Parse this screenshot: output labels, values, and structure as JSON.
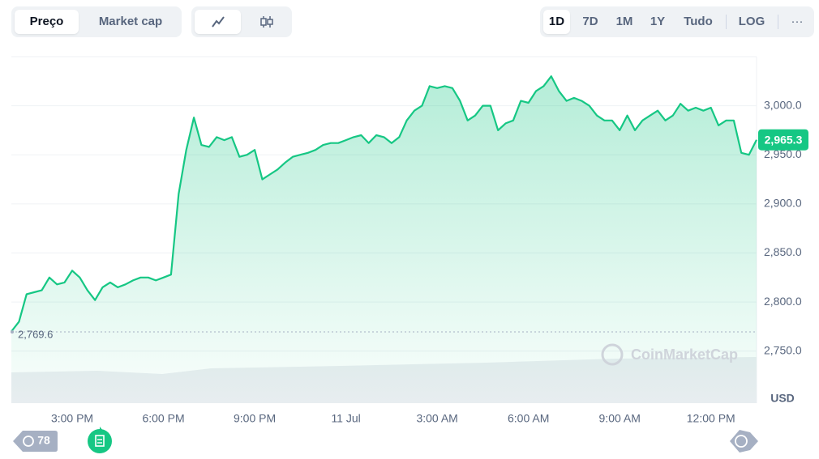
{
  "ui": {
    "view_tabs": [
      "Preço",
      "Market cap"
    ],
    "range_buttons": [
      "1D",
      "7D",
      "1M",
      "1Y",
      "Tudo"
    ],
    "scale_button": "LOG",
    "more_button": "···",
    "history_count": "78",
    "watermark": "CoinMarketCap"
  },
  "chart_data": {
    "type": "area",
    "color": "#16c784",
    "y_unit": "USD",
    "grid": true,
    "categories": [
      null,
      null,
      null,
      null,
      null,
      null,
      null,
      null,
      "3:00 PM",
      null,
      null,
      null,
      null,
      null,
      null,
      null,
      null,
      null,
      null,
      null,
      "6:00 PM",
      null,
      null,
      null,
      null,
      null,
      null,
      null,
      null,
      null,
      null,
      null,
      "9:00 PM",
      null,
      null,
      null,
      null,
      null,
      null,
      null,
      null,
      null,
      null,
      null,
      "11 Jul",
      null,
      null,
      null,
      null,
      null,
      null,
      null,
      null,
      null,
      null,
      null,
      "3:00 AM",
      null,
      null,
      null,
      null,
      null,
      null,
      null,
      null,
      null,
      null,
      null,
      "6:00 AM",
      null,
      null,
      null,
      null,
      null,
      null,
      null,
      null,
      null,
      null,
      null,
      "9:00 AM",
      null,
      null,
      null,
      null,
      null,
      null,
      null,
      null,
      null,
      null,
      null,
      "12:00 PM",
      null,
      null,
      null,
      null,
      null,
      null
    ],
    "values": [
      2770,
      2780,
      2808,
      2810,
      2812,
      2825,
      2818,
      2820,
      2832,
      2825,
      2812,
      2802,
      2815,
      2820,
      2815,
      2818,
      2822,
      2825,
      2825,
      2822,
      2825,
      2828,
      2910,
      2955,
      2988,
      2960,
      2958,
      2968,
      2965,
      2968,
      2948,
      2950,
      2955,
      2925,
      2930,
      2935,
      2942,
      2948,
      2950,
      2952,
      2955,
      2960,
      2962,
      2962,
      2965,
      2968,
      2970,
      2962,
      2970,
      2968,
      2962,
      2968,
      2985,
      2995,
      3000,
      3020,
      3018,
      3020,
      3018,
      3005,
      2985,
      2990,
      3000,
      3000,
      2975,
      2982,
      2985,
      3005,
      3003,
      3015,
      3020,
      3030,
      3015,
      3005,
      3008,
      3005,
      3000,
      2990,
      2985,
      2985,
      2975,
      2990,
      2975,
      2985,
      2990,
      2995,
      2985,
      2990,
      3002,
      2995,
      2998,
      2995,
      2998,
      2980,
      2985,
      2985,
      2952,
      2950,
      2965.3
    ],
    "open_price": {
      "value": 2769.6,
      "label": "2,769.6"
    },
    "current_price": {
      "value": 2965.3,
      "label": "2,965.3"
    },
    "ylim": [
      2697,
      3050
    ],
    "yticks": [
      {
        "value": 2750,
        "label": "2,750.0"
      },
      {
        "value": 2800,
        "label": "2,800.0"
      },
      {
        "value": 2850,
        "label": "2,850.0"
      },
      {
        "value": 2900,
        "label": "2,900.0"
      },
      {
        "value": 2950,
        "label": "2,950.0"
      },
      {
        "value": 3000,
        "label": "3,000.0"
      }
    ]
  }
}
